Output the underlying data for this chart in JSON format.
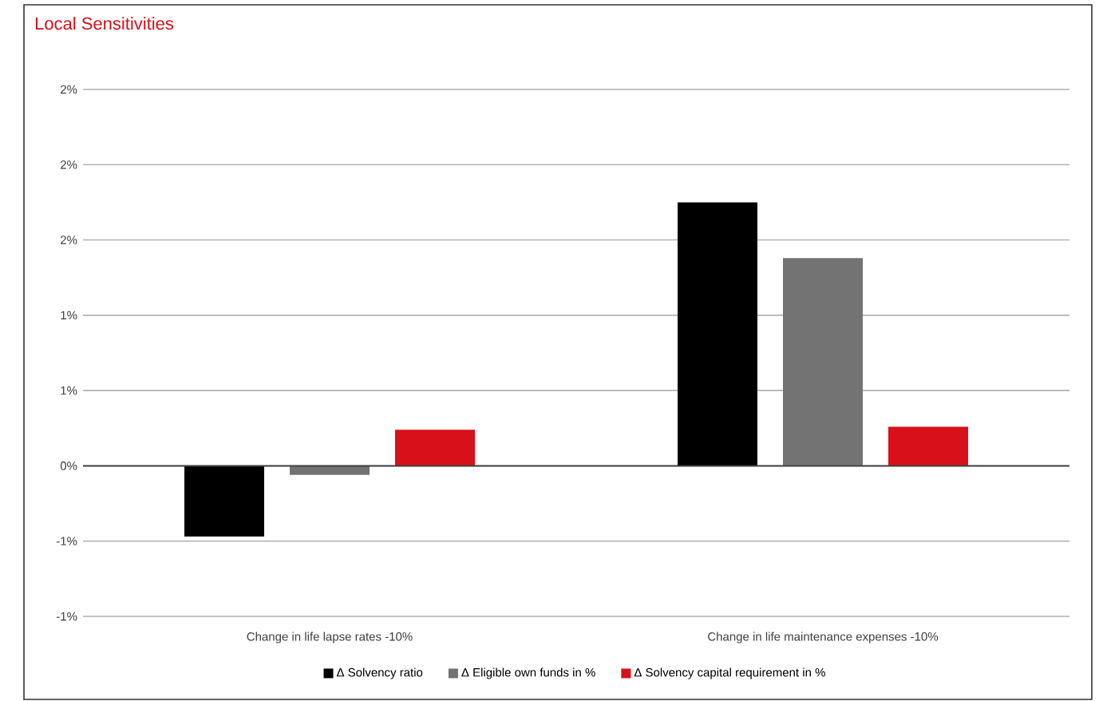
{
  "chart_data": {
    "type": "bar",
    "title": "Local Sensitivities",
    "categories": [
      "Change in life lapse rates -10%",
      "Change in life maintenance expenses -10%"
    ],
    "series": [
      {
        "name": "Δ Solvency ratio",
        "color": "#000000",
        "values": [
          -0.47,
          1.75
        ]
      },
      {
        "name": "Δ Eligible own funds in %",
        "color": "#737373",
        "values": [
          -0.06,
          1.38
        ]
      },
      {
        "name": "Δ Solvency capital requirement in %",
        "color": "#d7101a",
        "values": [
          0.24,
          0.26
        ]
      }
    ],
    "ylim": [
      -1.0,
      2.5
    ],
    "yticks": [
      {
        "value": -1.0,
        "label": "-1%"
      },
      {
        "value": -0.5,
        "label": "-1%"
      },
      {
        "value": 0,
        "label": "0%"
      },
      {
        "value": 0.5,
        "label": "1%"
      },
      {
        "value": 1.0,
        "label": "1%"
      },
      {
        "value": 1.5,
        "label": "2%"
      },
      {
        "value": 2.0,
        "label": "2%"
      },
      {
        "value": 2.5,
        "label": "2%"
      }
    ],
    "grid": "y",
    "legend": "bottom"
  }
}
